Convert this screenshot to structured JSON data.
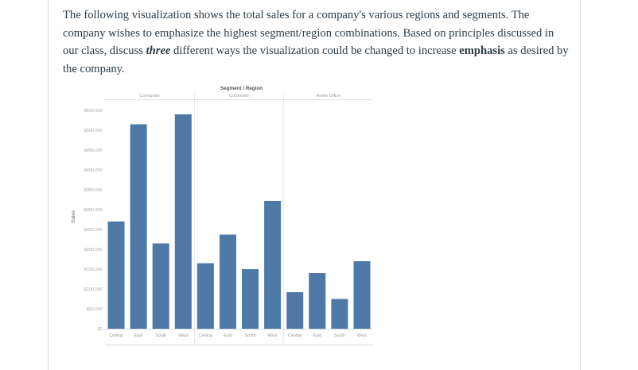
{
  "question": {
    "text_before_three": "The following visualization shows the total sales for a company's various regions and segments. The company wishes to emphasize the highest segment/region combinations. Based on principles discussed in our class, discuss ",
    "three": "three",
    "text_before_emphasis": " different ways the visualization could be changed to increase ",
    "emphasis": "emphasis",
    "text_after_emphasis": " as desired by the company."
  },
  "chart_data": {
    "type": "bar",
    "title": "Segment / Region",
    "ylabel": "Sales",
    "xlabel": "",
    "ylim": [
      0,
      550000
    ],
    "y_ticks": [
      0,
      50000,
      100000,
      150000,
      200000,
      250000,
      300000,
      350000,
      400000,
      450000,
      500000,
      550000
    ],
    "y_tick_labels": [
      "$0",
      "$50,000",
      "$100,000",
      "$150,000",
      "$200,000",
      "$250,000",
      "$300,000",
      "$350,000",
      "$400,000",
      "$450,000",
      "$500,000",
      "$550,000"
    ],
    "grid": "vertical-panel-dividers",
    "bar_color": "#4e79a7",
    "segments": [
      {
        "name": "Consumer",
        "categories": [
          "Central",
          "East",
          "South",
          "West"
        ],
        "values": [
          270000,
          515000,
          215000,
          540000
        ]
      },
      {
        "name": "Corporate",
        "categories": [
          "Central",
          "East",
          "South",
          "West"
        ],
        "values": [
          165000,
          237000,
          150000,
          322000
        ]
      },
      {
        "name": "Home Office",
        "categories": [
          "Central",
          "East",
          "South",
          "West"
        ],
        "values": [
          92000,
          140000,
          75000,
          170000
        ]
      }
    ]
  }
}
